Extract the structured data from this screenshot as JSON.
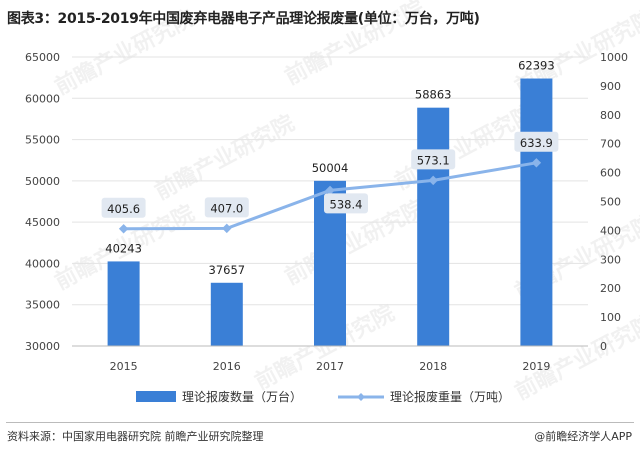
{
  "title": "图表3：2015-2019年中国废弃电器电子产品理论报废量(单位：万台，万吨)",
  "source": "资料来源：中国家用电器研究院 前瞻产业研究院整理",
  "brand": "@前瞻经济学人APP",
  "watermark": "前瞻产业研究院",
  "colors": {
    "bar": "#3a7fd6",
    "line": "#8ab4ea",
    "label_box": "#e1e8f1",
    "grid": "#e3e3e3"
  },
  "chart_data": {
    "type": "bar+line",
    "categories": [
      "2015",
      "2016",
      "2017",
      "2018",
      "2019"
    ],
    "series": [
      {
        "name": "理论报废数量（万台）",
        "type": "bar",
        "axis": "left",
        "values": [
          40243,
          37657,
          50004,
          58863,
          62393
        ],
        "labels": [
          "40243",
          "37657",
          "50004",
          "58863",
          "62393"
        ]
      },
      {
        "name": "理论报废重量（万吨）",
        "type": "line",
        "axis": "right",
        "values": [
          405.6,
          407.0,
          538.4,
          573.1,
          633.9
        ],
        "labels": [
          "405.6",
          "407.0",
          "538.4",
          "573.1",
          "633.9"
        ]
      }
    ],
    "y_left": {
      "min": 30000,
      "max": 65000,
      "ticks": [
        "30000",
        "35000",
        "40000",
        "45000",
        "50000",
        "55000",
        "60000",
        "65000"
      ]
    },
    "y_right": {
      "min": 0,
      "max": 1000,
      "ticks": [
        "0",
        "100",
        "200",
        "300",
        "400",
        "500",
        "600",
        "700",
        "800",
        "900",
        "1000"
      ]
    },
    "grid": true,
    "legend_position": "bottom"
  }
}
